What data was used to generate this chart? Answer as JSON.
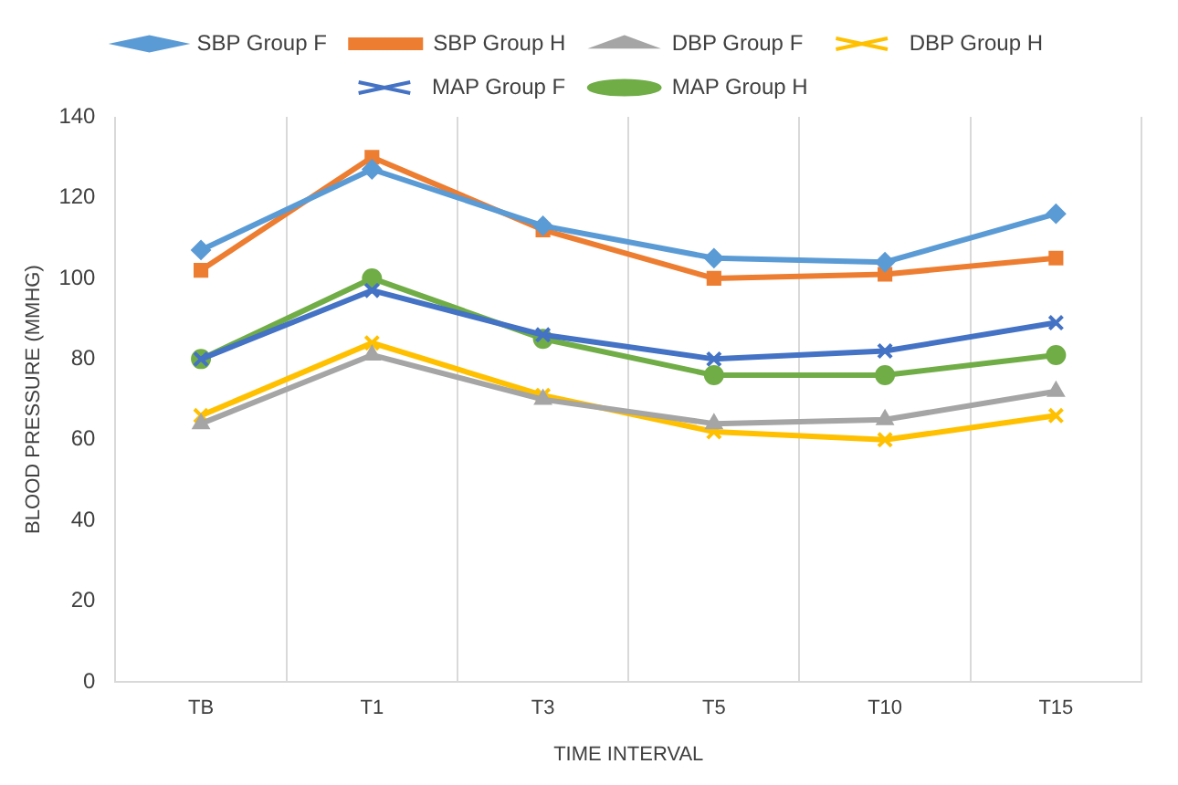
{
  "chart_data": {
    "type": "line",
    "xlabel": "TIME INTERVAL",
    "ylabel": "BLOOD PRESSURE (MMHG)",
    "categories": [
      "TB",
      "T1",
      "T3",
      "T5",
      "T10",
      "T15"
    ],
    "series": [
      {
        "name": "SBP Group F",
        "color": "#5b9bd5",
        "marker": "diamond",
        "values": [
          107,
          127,
          113,
          105,
          104,
          116
        ]
      },
      {
        "name": "SBP Group H",
        "color": "#ed7d31",
        "marker": "square",
        "values": [
          102,
          130,
          112,
          100,
          101,
          105
        ]
      },
      {
        "name": "DBP Group F",
        "color": "#a5a5a5",
        "marker": "triangle",
        "values": [
          64,
          81,
          70,
          64,
          65,
          72
        ]
      },
      {
        "name": "DBP Group H",
        "color": "#ffc000",
        "marker": "cross",
        "values": [
          66,
          84,
          71,
          62,
          60,
          66
        ]
      },
      {
        "name": "MAP Group F",
        "color": "#4472c4",
        "marker": "cross",
        "values": [
          80,
          97,
          86,
          80,
          82,
          89
        ]
      },
      {
        "name": "MAP Group H",
        "color": "#70ad47",
        "marker": "circle",
        "values": [
          80,
          100,
          85,
          76,
          76,
          81
        ]
      }
    ],
    "ylim": [
      0,
      140
    ],
    "yticks": [
      0,
      20,
      40,
      60,
      80,
      100,
      120,
      140
    ],
    "grid": "x",
    "legend": "top"
  }
}
